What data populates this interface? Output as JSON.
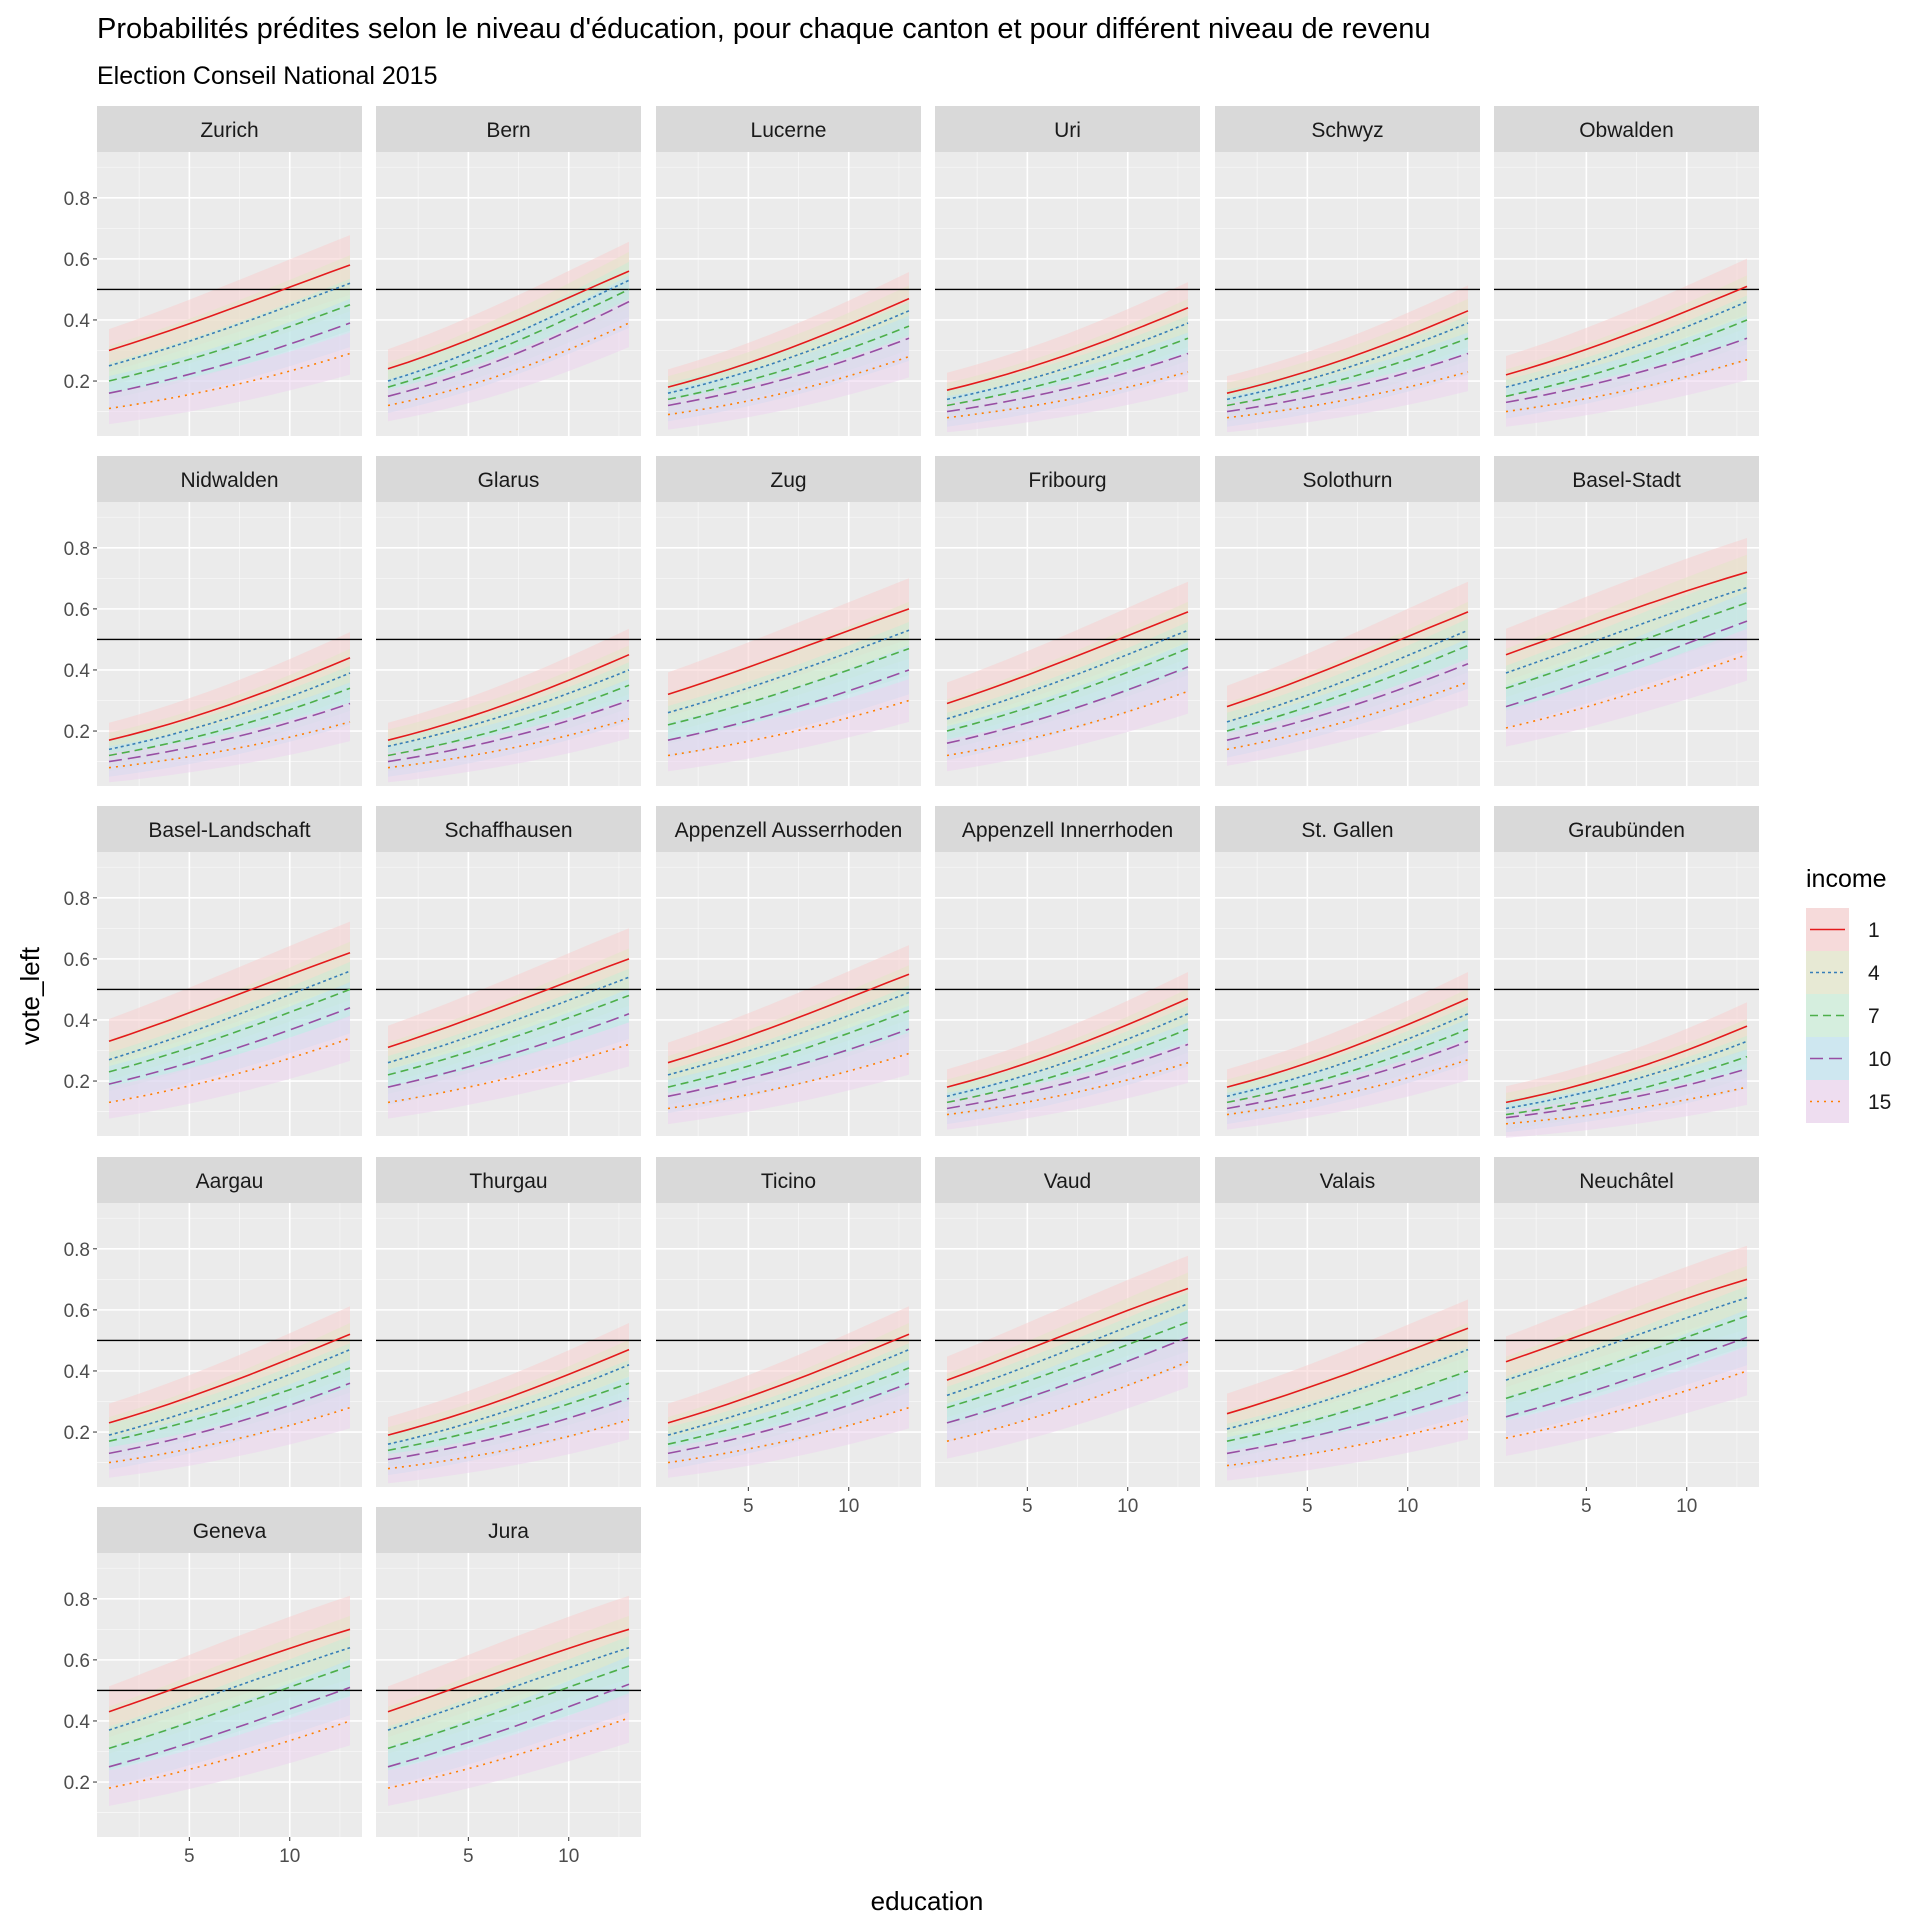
{
  "title": "Probabilités prédites selon le niveau d'éducation, pour chaque canton et pour différent niveau de revenu",
  "subtitle": "Election Conseil National 2015",
  "chart_data": {
    "type": "line",
    "facet_type": "line with confidence ribbons, faceted by canton",
    "xlabel": "education",
    "ylabel": "vote_left",
    "x_range": [
      1,
      13
    ],
    "ylim": [
      0.02,
      0.95
    ],
    "x_ticks": [
      5,
      10
    ],
    "y_ticks": [
      0.2,
      0.4,
      0.6,
      0.8
    ],
    "y_tick_labels": [
      "0.2",
      "0.4",
      "0.6",
      "0.8"
    ],
    "x_tick_labels": [
      "5",
      "10"
    ],
    "reference_line": 0.5,
    "grid": true,
    "legend": {
      "title": "income",
      "position": "right",
      "levels": [
        "1",
        "4",
        "7",
        "10",
        "15"
      ],
      "colors": [
        "#e41a1c",
        "#377eb8",
        "#4daf4a",
        "#984ea3",
        "#ff7f00"
      ],
      "ribbon_colors": [
        "#f8d0d0",
        "#e3e6c8",
        "#c9ecd6",
        "#bfe3f0",
        "#ecd4ef"
      ],
      "linetypes": [
        "solid",
        "dotted",
        "dashed",
        "longdash",
        "dotted"
      ]
    },
    "facets": [
      {
        "canton": "Zurich",
        "start": [
          0.3,
          0.25,
          0.2,
          0.16,
          0.11
        ],
        "end": [
          0.58,
          0.52,
          0.45,
          0.39,
          0.29
        ]
      },
      {
        "canton": "Bern",
        "start": [
          0.24,
          0.2,
          0.18,
          0.15,
          0.12
        ],
        "end": [
          0.56,
          0.53,
          0.5,
          0.46,
          0.39
        ]
      },
      {
        "canton": "Lucerne",
        "start": [
          0.18,
          0.16,
          0.14,
          0.12,
          0.09
        ],
        "end": [
          0.47,
          0.43,
          0.38,
          0.34,
          0.28
        ]
      },
      {
        "canton": "Uri",
        "start": [
          0.17,
          0.14,
          0.12,
          0.1,
          0.08
        ],
        "end": [
          0.44,
          0.39,
          0.34,
          0.29,
          0.23
        ]
      },
      {
        "canton": "Schwyz",
        "start": [
          0.16,
          0.14,
          0.12,
          0.1,
          0.08
        ],
        "end": [
          0.43,
          0.39,
          0.34,
          0.29,
          0.23
        ]
      },
      {
        "canton": "Obwalden",
        "start": [
          0.22,
          0.18,
          0.15,
          0.13,
          0.1
        ],
        "end": [
          0.51,
          0.46,
          0.4,
          0.34,
          0.27
        ]
      },
      {
        "canton": "Nidwalden",
        "start": [
          0.17,
          0.14,
          0.12,
          0.1,
          0.08
        ],
        "end": [
          0.44,
          0.39,
          0.34,
          0.29,
          0.23
        ]
      },
      {
        "canton": "Glarus",
        "start": [
          0.17,
          0.15,
          0.12,
          0.1,
          0.08
        ],
        "end": [
          0.45,
          0.4,
          0.35,
          0.3,
          0.24
        ]
      },
      {
        "canton": "Zug",
        "start": [
          0.32,
          0.26,
          0.22,
          0.17,
          0.12
        ],
        "end": [
          0.6,
          0.53,
          0.47,
          0.4,
          0.3
        ]
      },
      {
        "canton": "Fribourg",
        "start": [
          0.29,
          0.24,
          0.2,
          0.16,
          0.12
        ],
        "end": [
          0.59,
          0.53,
          0.47,
          0.41,
          0.33
        ]
      },
      {
        "canton": "Solothurn",
        "start": [
          0.28,
          0.23,
          0.2,
          0.17,
          0.14
        ],
        "end": [
          0.59,
          0.53,
          0.48,
          0.42,
          0.36
        ]
      },
      {
        "canton": "Basel-Stadt",
        "start": [
          0.45,
          0.39,
          0.34,
          0.28,
          0.21
        ],
        "end": [
          0.72,
          0.67,
          0.62,
          0.56,
          0.45
        ]
      },
      {
        "canton": "Basel-Landschaft",
        "start": [
          0.33,
          0.27,
          0.23,
          0.19,
          0.13
        ],
        "end": [
          0.62,
          0.56,
          0.5,
          0.44,
          0.34
        ]
      },
      {
        "canton": "Schaffhausen",
        "start": [
          0.31,
          0.26,
          0.22,
          0.18,
          0.13
        ],
        "end": [
          0.6,
          0.54,
          0.48,
          0.42,
          0.32
        ]
      },
      {
        "canton": "Appenzell Ausserrhoden",
        "start": [
          0.26,
          0.22,
          0.18,
          0.15,
          0.11
        ],
        "end": [
          0.55,
          0.49,
          0.43,
          0.37,
          0.29
        ]
      },
      {
        "canton": "Appenzell Innerrhoden",
        "start": [
          0.18,
          0.15,
          0.13,
          0.11,
          0.09
        ],
        "end": [
          0.47,
          0.42,
          0.37,
          0.32,
          0.26
        ]
      },
      {
        "canton": "St. Gallen",
        "start": [
          0.18,
          0.15,
          0.13,
          0.11,
          0.09
        ],
        "end": [
          0.47,
          0.42,
          0.37,
          0.33,
          0.27
        ]
      },
      {
        "canton": "Graubünden",
        "start": [
          0.13,
          0.11,
          0.09,
          0.08,
          0.06
        ],
        "end": [
          0.38,
          0.33,
          0.28,
          0.24,
          0.18
        ]
      },
      {
        "canton": "Aargau",
        "start": [
          0.23,
          0.19,
          0.17,
          0.13,
          0.1
        ],
        "end": [
          0.52,
          0.47,
          0.41,
          0.36,
          0.28
        ]
      },
      {
        "canton": "Thurgau",
        "start": [
          0.19,
          0.16,
          0.14,
          0.11,
          0.08
        ],
        "end": [
          0.47,
          0.42,
          0.36,
          0.31,
          0.24
        ]
      },
      {
        "canton": "Ticino",
        "start": [
          0.23,
          0.19,
          0.16,
          0.13,
          0.1
        ],
        "end": [
          0.52,
          0.47,
          0.41,
          0.36,
          0.28
        ]
      },
      {
        "canton": "Vaud",
        "start": [
          0.37,
          0.32,
          0.28,
          0.23,
          0.17
        ],
        "end": [
          0.67,
          0.62,
          0.56,
          0.51,
          0.43
        ]
      },
      {
        "canton": "Valais",
        "start": [
          0.26,
          0.21,
          0.17,
          0.13,
          0.09
        ],
        "end": [
          0.54,
          0.47,
          0.4,
          0.33,
          0.24
        ]
      },
      {
        "canton": "Neuchâtel",
        "start": [
          0.43,
          0.37,
          0.31,
          0.25,
          0.18
        ],
        "end": [
          0.7,
          0.64,
          0.58,
          0.51,
          0.4
        ]
      },
      {
        "canton": "Geneva",
        "start": [
          0.43,
          0.37,
          0.31,
          0.25,
          0.18
        ],
        "end": [
          0.7,
          0.64,
          0.58,
          0.51,
          0.4
        ]
      },
      {
        "canton": "Jura",
        "start": [
          0.43,
          0.37,
          0.31,
          0.25,
          0.18
        ],
        "end": [
          0.7,
          0.64,
          0.58,
          0.52,
          0.41
        ]
      }
    ]
  }
}
